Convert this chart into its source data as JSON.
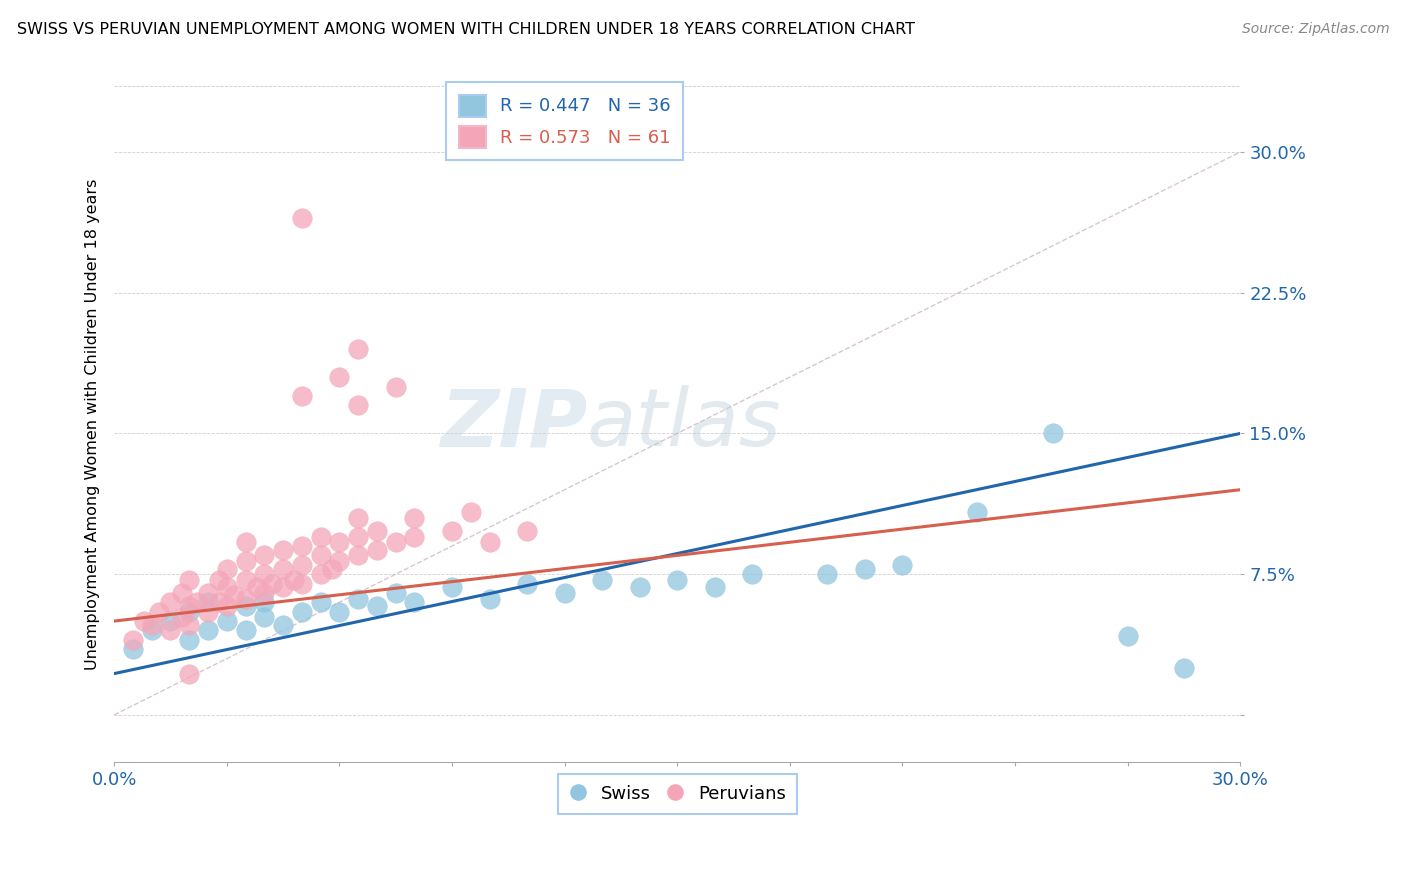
{
  "title": "SWISS VS PERUVIAN UNEMPLOYMENT AMONG WOMEN WITH CHILDREN UNDER 18 YEARS CORRELATION CHART",
  "source": "Source: ZipAtlas.com",
  "ylabel": "Unemployment Among Women with Children Under 18 years",
  "xlim": [
    0.0,
    0.3
  ],
  "ylim": [
    -0.025,
    0.335
  ],
  "swiss_R": 0.447,
  "swiss_N": 36,
  "peruvian_R": 0.573,
  "peruvian_N": 61,
  "swiss_color": "#92c5de",
  "peruvian_color": "#f4a6b8",
  "swiss_line_color": "#2166ac",
  "peruvian_line_color": "#d6604d",
  "swiss_points": [
    [
      0.005,
      0.035
    ],
    [
      0.01,
      0.045
    ],
    [
      0.015,
      0.05
    ],
    [
      0.02,
      0.04
    ],
    [
      0.02,
      0.055
    ],
    [
      0.025,
      0.045
    ],
    [
      0.025,
      0.06
    ],
    [
      0.03,
      0.05
    ],
    [
      0.035,
      0.045
    ],
    [
      0.035,
      0.058
    ],
    [
      0.04,
      0.052
    ],
    [
      0.04,
      0.06
    ],
    [
      0.045,
      0.048
    ],
    [
      0.05,
      0.055
    ],
    [
      0.055,
      0.06
    ],
    [
      0.06,
      0.055
    ],
    [
      0.065,
      0.062
    ],
    [
      0.07,
      0.058
    ],
    [
      0.075,
      0.065
    ],
    [
      0.08,
      0.06
    ],
    [
      0.09,
      0.068
    ],
    [
      0.1,
      0.062
    ],
    [
      0.11,
      0.07
    ],
    [
      0.12,
      0.065
    ],
    [
      0.13,
      0.072
    ],
    [
      0.14,
      0.068
    ],
    [
      0.15,
      0.072
    ],
    [
      0.16,
      0.068
    ],
    [
      0.17,
      0.075
    ],
    [
      0.19,
      0.075
    ],
    [
      0.2,
      0.078
    ],
    [
      0.21,
      0.08
    ],
    [
      0.23,
      0.108
    ],
    [
      0.25,
      0.15
    ],
    [
      0.27,
      0.042
    ],
    [
      0.285,
      0.025
    ]
  ],
  "peruvian_points": [
    [
      0.005,
      0.04
    ],
    [
      0.008,
      0.05
    ],
    [
      0.01,
      0.048
    ],
    [
      0.012,
      0.055
    ],
    [
      0.015,
      0.045
    ],
    [
      0.015,
      0.06
    ],
    [
      0.018,
      0.052
    ],
    [
      0.018,
      0.065
    ],
    [
      0.02,
      0.048
    ],
    [
      0.02,
      0.058
    ],
    [
      0.02,
      0.072
    ],
    [
      0.022,
      0.06
    ],
    [
      0.025,
      0.055
    ],
    [
      0.025,
      0.065
    ],
    [
      0.028,
      0.06
    ],
    [
      0.028,
      0.072
    ],
    [
      0.03,
      0.058
    ],
    [
      0.03,
      0.068
    ],
    [
      0.03,
      0.078
    ],
    [
      0.032,
      0.064
    ],
    [
      0.035,
      0.062
    ],
    [
      0.035,
      0.072
    ],
    [
      0.035,
      0.082
    ],
    [
      0.035,
      0.092
    ],
    [
      0.038,
      0.068
    ],
    [
      0.04,
      0.065
    ],
    [
      0.04,
      0.075
    ],
    [
      0.04,
      0.085
    ],
    [
      0.042,
      0.07
    ],
    [
      0.045,
      0.068
    ],
    [
      0.045,
      0.078
    ],
    [
      0.045,
      0.088
    ],
    [
      0.048,
      0.072
    ],
    [
      0.05,
      0.07
    ],
    [
      0.05,
      0.08
    ],
    [
      0.05,
      0.09
    ],
    [
      0.05,
      0.17
    ],
    [
      0.055,
      0.075
    ],
    [
      0.055,
      0.085
    ],
    [
      0.055,
      0.095
    ],
    [
      0.058,
      0.078
    ],
    [
      0.06,
      0.082
    ],
    [
      0.06,
      0.092
    ],
    [
      0.06,
      0.18
    ],
    [
      0.065,
      0.085
    ],
    [
      0.065,
      0.095
    ],
    [
      0.065,
      0.105
    ],
    [
      0.065,
      0.165
    ],
    [
      0.07,
      0.088
    ],
    [
      0.07,
      0.098
    ],
    [
      0.075,
      0.092
    ],
    [
      0.075,
      0.175
    ],
    [
      0.08,
      0.095
    ],
    [
      0.08,
      0.105
    ],
    [
      0.09,
      0.098
    ],
    [
      0.095,
      0.108
    ],
    [
      0.1,
      0.092
    ],
    [
      0.11,
      0.098
    ],
    [
      0.05,
      0.265
    ],
    [
      0.065,
      0.195
    ],
    [
      0.02,
      0.022
    ]
  ]
}
